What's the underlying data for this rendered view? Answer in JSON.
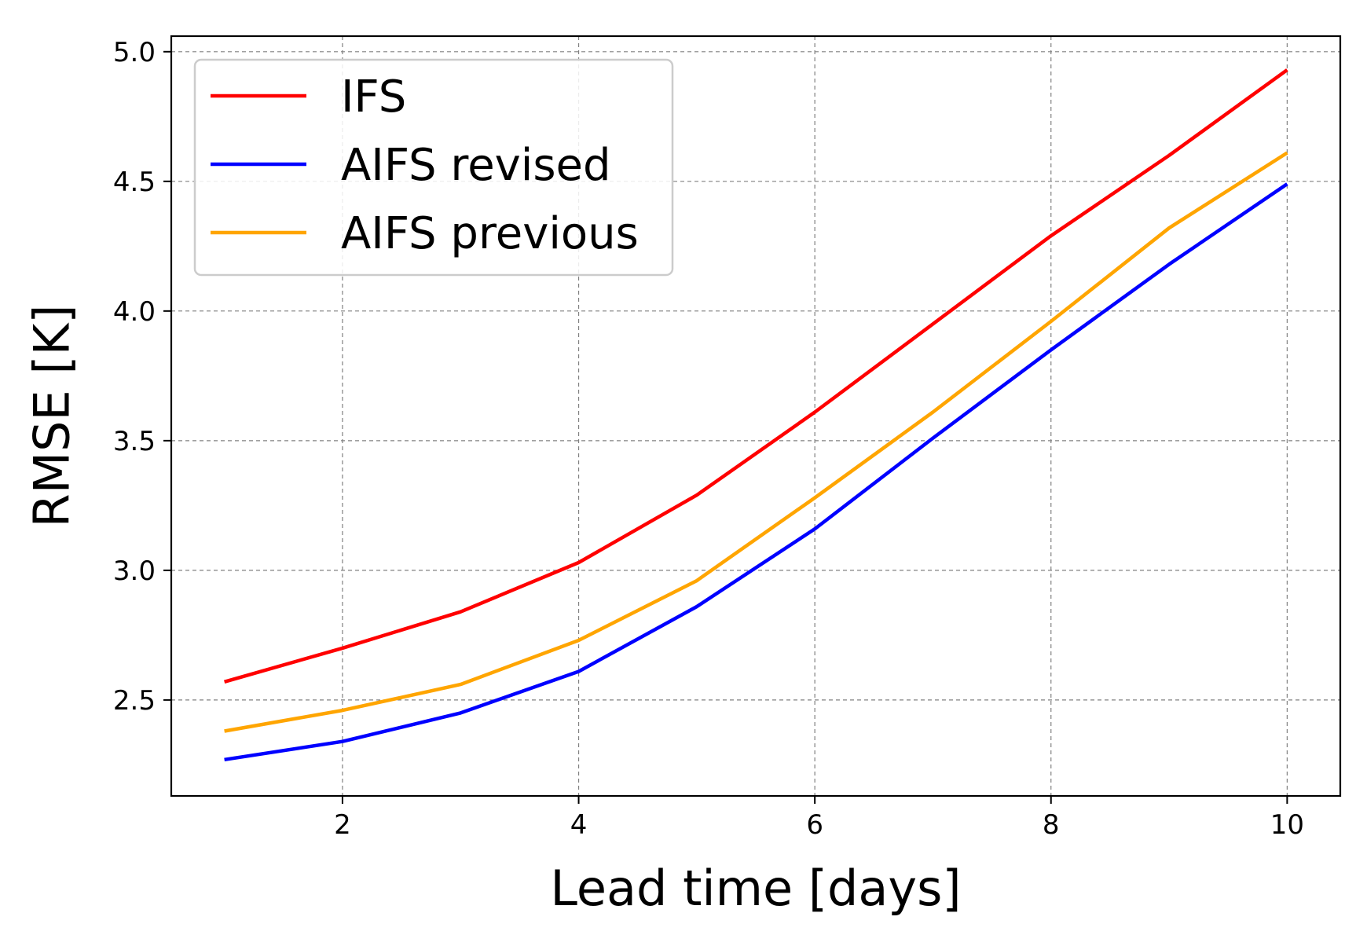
{
  "chart_data": {
    "type": "line",
    "title": "",
    "xlabel": "Lead time [days]",
    "ylabel": "RMSE [K]",
    "xlim": [
      0.55,
      10.45
    ],
    "ylim": [
      2.13,
      5.06
    ],
    "xticks": [
      2,
      4,
      6,
      8,
      10
    ],
    "xtick_labels": [
      "2",
      "4",
      "6",
      "8",
      "10"
    ],
    "yticks": [
      2.5,
      3.0,
      3.5,
      4.0,
      4.5,
      5.0
    ],
    "ytick_labels": [
      "2.5",
      "3.0",
      "3.5",
      "4.0",
      "4.5",
      "5.0"
    ],
    "grid": true,
    "legend_position": "upper-left",
    "x": [
      1,
      2,
      3,
      4,
      5,
      6,
      7,
      8,
      9,
      10
    ],
    "series": [
      {
        "name": "IFS",
        "color": "#ff0000",
        "values": [
          2.57,
          2.7,
          2.84,
          3.03,
          3.29,
          3.61,
          3.95,
          4.29,
          4.6,
          4.93
        ]
      },
      {
        "name": "AIFS revised",
        "color": "#0000ff",
        "values": [
          2.27,
          2.34,
          2.45,
          2.61,
          2.86,
          3.16,
          3.51,
          3.85,
          4.18,
          4.49
        ]
      },
      {
        "name": "AIFS previous",
        "color": "#ffa500",
        "values": [
          2.38,
          2.46,
          2.56,
          2.73,
          2.96,
          3.28,
          3.61,
          3.96,
          4.32,
          4.61
        ]
      }
    ]
  }
}
